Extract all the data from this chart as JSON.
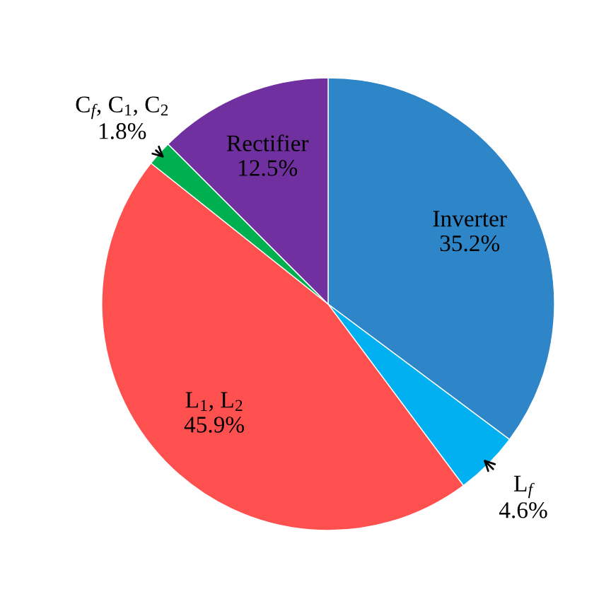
{
  "chart_data": {
    "type": "pie",
    "categories": [
      "Inverter",
      "L$_{f}$",
      "L$_{1}$, L$_{2}$",
      "C$_{f}$, C$_{1}$, C$_{2}$",
      "Rectifier"
    ],
    "values": [
      35.2,
      4.6,
      45.9,
      1.8,
      12.5
    ],
    "value_labels": [
      "35.2%",
      "4.6%",
      "45.9%",
      "1.8%",
      "12.5%"
    ],
    "colors": [
      "#2e86c8",
      "#00b0f0",
      "#ff5050",
      "#00b050",
      "#7030a0"
    ]
  }
}
